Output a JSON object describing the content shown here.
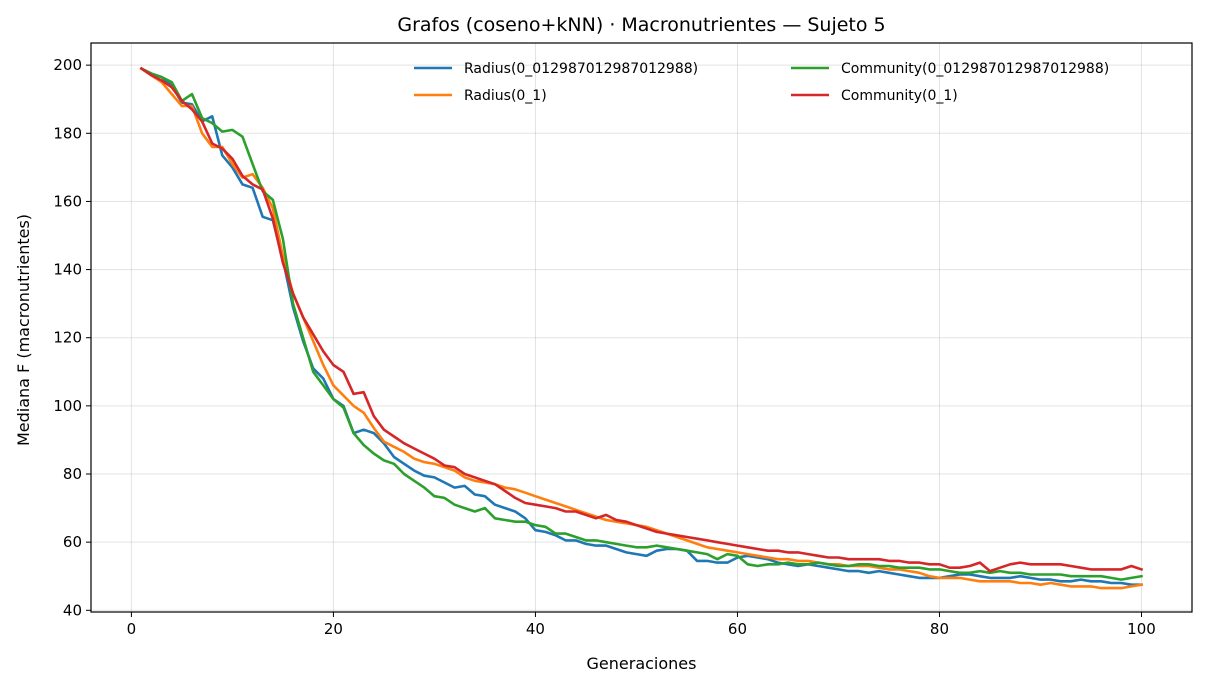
{
  "chart_data": {
    "type": "line",
    "title": "Grafos (coseno+kNN) · Macronutrientes — Sujeto 5",
    "xlabel": "Generaciones",
    "ylabel": "Mediana F (macronutrientes)",
    "xlim": [
      -4,
      105
    ],
    "ylim": [
      39.5,
      206.5
    ],
    "xticks": [
      0,
      20,
      40,
      60,
      80,
      100
    ],
    "yticks": [
      40,
      60,
      80,
      100,
      120,
      140,
      160,
      180,
      200
    ],
    "grid": true,
    "legend": {
      "placement": "top-right",
      "columns": 2
    },
    "series": [
      {
        "name": "Radius(0_012987012987012988)",
        "color": "#1f77b4",
        "x": [
          1,
          2,
          3,
          4,
          5,
          6,
          7,
          8,
          9,
          10,
          11,
          12,
          13,
          14,
          15,
          16,
          17,
          18,
          19,
          20,
          21,
          22,
          23,
          24,
          25,
          26,
          27,
          28,
          29,
          30,
          31,
          32,
          33,
          34,
          35,
          36,
          37,
          38,
          39,
          40,
          41,
          42,
          43,
          44,
          45,
          46,
          47,
          48,
          49,
          50,
          51,
          52,
          53,
          54,
          55,
          56,
          57,
          58,
          59,
          60,
          61,
          62,
          63,
          64,
          65,
          66,
          67,
          68,
          69,
          70,
          71,
          72,
          73,
          74,
          75,
          76,
          77,
          78,
          79,
          80,
          81,
          82,
          83,
          84,
          85,
          86,
          87,
          88,
          89,
          90,
          91,
          92,
          93,
          94,
          95,
          96,
          97,
          98,
          99,
          100
        ],
        "y": [
          199,
          197.5,
          196.5,
          194,
          189,
          188.5,
          183.5,
          185,
          173.5,
          170,
          165,
          164,
          155.5,
          154.5,
          143,
          129,
          119,
          111,
          108,
          102,
          100,
          92,
          93,
          92,
          89,
          85,
          83,
          81,
          79.5,
          79,
          77.5,
          76,
          76.5,
          74,
          73.5,
          71,
          70,
          69,
          67,
          63.5,
          63,
          62,
          60.5,
          60.5,
          59.5,
          59,
          59,
          58,
          57,
          56.5,
          56,
          57.5,
          58,
          58,
          57.5,
          54.5,
          54.5,
          54,
          54,
          55.5,
          56,
          55.5,
          55,
          54,
          53.5,
          53,
          53.5,
          53,
          52.5,
          52,
          51.5,
          51.5,
          51,
          51.5,
          51,
          50.5,
          50,
          49.5,
          49.5,
          49.5,
          50,
          50.5,
          50.5,
          50,
          49.5,
          49.5,
          49.5,
          50,
          49.5,
          49,
          49,
          48.5,
          48.5,
          49,
          48.5,
          48.5,
          48,
          48,
          47.5,
          47.5
        ]
      },
      {
        "name": "Radius(0_1)",
        "color": "#ff7f0e",
        "x": [
          1,
          2,
          3,
          4,
          5,
          6,
          7,
          8,
          9,
          10,
          11,
          12,
          13,
          14,
          15,
          16,
          17,
          18,
          19,
          20,
          21,
          22,
          23,
          24,
          25,
          26,
          27,
          28,
          29,
          30,
          31,
          32,
          33,
          34,
          35,
          36,
          37,
          38,
          39,
          40,
          41,
          42,
          43,
          44,
          45,
          46,
          47,
          48,
          49,
          50,
          51,
          52,
          53,
          54,
          55,
          56,
          57,
          58,
          59,
          60,
          61,
          62,
          63,
          64,
          65,
          66,
          67,
          68,
          69,
          70,
          71,
          72,
          73,
          74,
          75,
          76,
          77,
          78,
          79,
          80,
          81,
          82,
          83,
          84,
          85,
          86,
          87,
          88,
          89,
          90,
          91,
          92,
          93,
          94,
          95,
          96,
          97,
          98,
          99,
          100
        ],
        "y": [
          199,
          197,
          195,
          191.5,
          188,
          188,
          180,
          176,
          176,
          171,
          167,
          168,
          164,
          158,
          144,
          133,
          126,
          119,
          112,
          106,
          103,
          100,
          98,
          93.5,
          89.5,
          88,
          86.5,
          84.5,
          83.5,
          83,
          82,
          81,
          79,
          78,
          77.5,
          77,
          76,
          75.5,
          74.5,
          73.5,
          72.5,
          71.5,
          70.5,
          69.5,
          68.5,
          67.5,
          66.5,
          66,
          65.5,
          65,
          64.5,
          63.5,
          62.5,
          61.5,
          60.5,
          59.5,
          58.5,
          58,
          57.5,
          57,
          56.5,
          56,
          55.5,
          55,
          55,
          54.5,
          54.5,
          54,
          53.5,
          53.5,
          53,
          53,
          53,
          52.5,
          52,
          52,
          51.5,
          51,
          50,
          49.5,
          49.5,
          49.5,
          49,
          48.5,
          48.5,
          48.5,
          48.5,
          48,
          48,
          47.5,
          48,
          47.5,
          47,
          47,
          47,
          46.5,
          46.5,
          46.5,
          47,
          47.5
        ]
      },
      {
        "name": "Community(0_012987012987012988)",
        "color": "#2ca02c",
        "x": [
          1,
          2,
          3,
          4,
          5,
          6,
          7,
          8,
          9,
          10,
          11,
          12,
          13,
          14,
          15,
          16,
          17,
          18,
          19,
          20,
          21,
          22,
          23,
          24,
          25,
          26,
          27,
          28,
          29,
          30,
          31,
          32,
          33,
          34,
          35,
          36,
          37,
          38,
          39,
          40,
          41,
          42,
          43,
          44,
          45,
          46,
          47,
          48,
          49,
          50,
          51,
          52,
          53,
          54,
          55,
          56,
          57,
          58,
          59,
          60,
          61,
          62,
          63,
          64,
          65,
          66,
          67,
          68,
          69,
          70,
          71,
          72,
          73,
          74,
          75,
          76,
          77,
          78,
          79,
          80,
          81,
          82,
          83,
          84,
          85,
          86,
          87,
          88,
          89,
          90,
          91,
          92,
          93,
          94,
          95,
          96,
          97,
          98,
          99,
          100
        ],
        "y": [
          199,
          197.5,
          196.5,
          195,
          189.5,
          191.5,
          184.5,
          183,
          180.5,
          181,
          179,
          171,
          163,
          160.5,
          149,
          130,
          120,
          110,
          106,
          102,
          99.5,
          92,
          88.5,
          86,
          84,
          83,
          80,
          78,
          76,
          73.5,
          73,
          71,
          70,
          69,
          70,
          67,
          66.5,
          66,
          66,
          65,
          64.5,
          62.5,
          62.5,
          61.5,
          60.5,
          60.5,
          60,
          59.5,
          59,
          58.5,
          58.5,
          59,
          58.5,
          58,
          57.5,
          57,
          56.5,
          55,
          56.5,
          56,
          53.5,
          53,
          53.5,
          53.5,
          54,
          53.5,
          53.5,
          54,
          53.5,
          53,
          53,
          53.5,
          53.5,
          53,
          53,
          52.5,
          52.5,
          52.5,
          52,
          52,
          51.5,
          51,
          51,
          51.5,
          51,
          51.5,
          51,
          51,
          50.5,
          50.5,
          50.5,
          50.5,
          50,
          50,
          50,
          50,
          49.5,
          49,
          49.5,
          50
        ]
      },
      {
        "name": "Community(0_1)",
        "color": "#d62728",
        "x": [
          1,
          2,
          3,
          4,
          5,
          6,
          7,
          8,
          9,
          10,
          11,
          12,
          13,
          14,
          15,
          16,
          17,
          18,
          19,
          20,
          21,
          22,
          23,
          24,
          25,
          26,
          27,
          28,
          29,
          30,
          31,
          32,
          33,
          34,
          35,
          36,
          37,
          38,
          39,
          40,
          41,
          42,
          43,
          44,
          45,
          46,
          47,
          48,
          49,
          50,
          51,
          52,
          53,
          54,
          55,
          56,
          57,
          58,
          59,
          60,
          61,
          62,
          63,
          64,
          65,
          66,
          67,
          68,
          69,
          70,
          71,
          72,
          73,
          74,
          75,
          76,
          77,
          78,
          79,
          80,
          81,
          82,
          83,
          84,
          85,
          86,
          87,
          88,
          89,
          90,
          91,
          92,
          93,
          94,
          95,
          96,
          97,
          98,
          99,
          100
        ],
        "y": [
          199,
          197,
          195.5,
          193.5,
          189.5,
          187,
          183.5,
          177,
          175.5,
          172.5,
          167.5,
          165,
          163.5,
          155,
          142,
          133,
          126,
          121,
          116,
          112,
          110,
          103.5,
          104,
          97,
          93,
          91,
          89,
          87.5,
          86,
          84.5,
          82.5,
          82,
          80,
          79,
          78,
          77,
          75,
          73,
          71.5,
          71,
          70.5,
          70,
          69,
          69,
          68,
          67,
          68,
          66.5,
          66,
          65,
          64,
          63,
          62.5,
          62,
          61.5,
          61,
          60.5,
          60,
          59.5,
          59,
          58.5,
          58,
          57.5,
          57.5,
          57,
          57,
          56.5,
          56,
          55.5,
          55.5,
          55,
          55,
          55,
          55,
          54.5,
          54.5,
          54,
          54,
          53.5,
          53.5,
          52.5,
          52.5,
          53,
          54,
          51.5,
          52.5,
          53.5,
          54,
          53.5,
          53.5,
          53.5,
          53.5,
          53,
          52.5,
          52,
          52,
          52,
          52,
          53,
          52
        ]
      }
    ]
  }
}
